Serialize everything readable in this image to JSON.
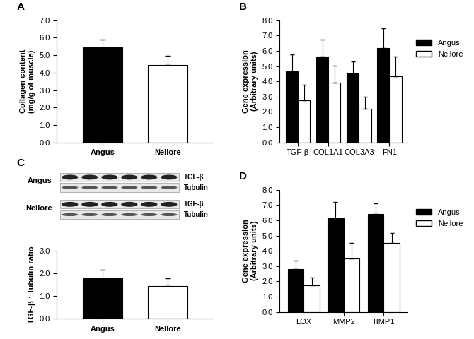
{
  "chart_data": [
    {
      "type": "bar",
      "title": "A",
      "categories": [
        "Angus",
        "Nellore"
      ],
      "values": [
        5.45,
        4.45
      ],
      "errors": [
        0.45,
        0.5
      ],
      "colors": [
        "#000000",
        "#ffffff"
      ],
      "y_label": "Collagen content\n(mg/g of muscle)",
      "ylim": [
        0,
        7
      ],
      "yticks": [
        {
          "value": 0,
          "label": "0.0"
        },
        {
          "value": 1,
          "label": "1.0"
        },
        {
          "value": 2,
          "label": "2.0"
        },
        {
          "value": 3,
          "label": "3.0"
        },
        {
          "value": 4,
          "label": "4.0"
        },
        {
          "value": 5,
          "label": "5.0"
        },
        {
          "value": 6,
          "label": "6.0"
        },
        {
          "value": 7,
          "label": "7.0"
        }
      ]
    },
    {
      "type": "grouped_bar",
      "title": "B",
      "categories": [
        "TGF-β",
        "COL1A1",
        "COL3A3",
        "FN1"
      ],
      "series": [
        {
          "name": "Angus",
          "color": "#000000",
          "values": [
            4.65,
            5.65,
            4.5,
            6.2
          ],
          "errors": [
            1.1,
            1.1,
            0.8,
            1.3
          ]
        },
        {
          "name": "Nellore",
          "color": "#ffffff",
          "values": [
            2.75,
            3.9,
            2.2,
            4.35
          ],
          "errors": [
            1.05,
            1.15,
            0.8,
            1.3
          ]
        }
      ],
      "y_label": "Gene expression\n(Arbitrary units)",
      "legend": "right",
      "ylim": [
        0,
        8
      ],
      "yticks": [
        {
          "value": 0,
          "label": "0.0"
        },
        {
          "value": 1,
          "label": "1.0"
        },
        {
          "value": 2,
          "label": "2.0"
        },
        {
          "value": 3,
          "label": "3.0"
        },
        {
          "value": 4,
          "label": "4.0"
        },
        {
          "value": 5,
          "label": "5.0"
        },
        {
          "value": 6,
          "label": "6.0"
        },
        {
          "value": 7,
          "label": "7.0"
        },
        {
          "value": 8,
          "label": "8.0"
        }
      ]
    },
    {
      "type": "bar",
      "title": "C",
      "blot_groups": [
        "Angus",
        "Nellore"
      ],
      "blot_bands": [
        "TGF-β",
        "Tubulin"
      ],
      "categories": [
        "Angus",
        "Nellore"
      ],
      "values": [
        1.8,
        1.45
      ],
      "errors": [
        0.35,
        0.35
      ],
      "colors": [
        "#000000",
        "#ffffff"
      ],
      "y_label": "TGF-β : Tubulin ratio",
      "ylim": [
        0,
        3
      ],
      "yticks": [
        {
          "value": 0,
          "label": "0.0"
        },
        {
          "value": 1,
          "label": "1.0"
        },
        {
          "value": 2,
          "label": "2.0"
        },
        {
          "value": 3,
          "label": "3.0"
        }
      ]
    },
    {
      "type": "grouped_bar",
      "title": "D",
      "categories": [
        "LOX",
        "MMP2",
        "TIMP1"
      ],
      "series": [
        {
          "name": "Angus",
          "color": "#000000",
          "values": [
            2.8,
            6.15,
            6.4
          ],
          "errors": [
            0.55,
            1.05,
            0.7
          ]
        },
        {
          "name": "Nellore",
          "color": "#ffffff",
          "values": [
            1.75,
            3.5,
            4.5
          ],
          "errors": [
            0.5,
            1.0,
            0.65
          ]
        }
      ],
      "y_label": "Gene expression\n(Arbitrary units)",
      "legend": "right",
      "ylim": [
        0,
        8
      ],
      "yticks": [
        {
          "value": 0,
          "label": "0.0"
        },
        {
          "value": 1,
          "label": "1.0"
        },
        {
          "value": 2,
          "label": "2.0"
        },
        {
          "value": 3,
          "label": "3.0"
        },
        {
          "value": 4,
          "label": "4.0"
        },
        {
          "value": 5,
          "label": "5.0"
        },
        {
          "value": 6,
          "label": "6.0"
        },
        {
          "value": 7,
          "label": "7.0"
        },
        {
          "value": 8,
          "label": "8.0"
        }
      ]
    }
  ]
}
